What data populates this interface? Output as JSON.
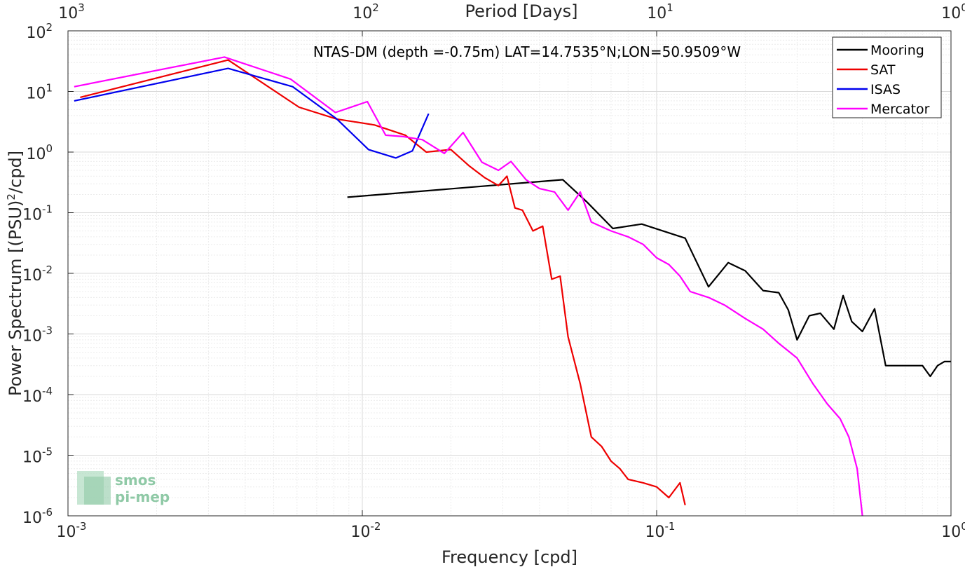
{
  "chart_data": {
    "type": "line",
    "title": "NTAS-DM (depth =-0.75m) LAT=14.7535°N;LON=50.9509°W",
    "xlabel": "Frequency [cpd]",
    "ylabel": "Power Spectrum [(PSU)",
    "ylabel_sup": "2",
    "ylabel_tail": "/cpd]",
    "x2label": "Period [Days]",
    "xscale": "log",
    "yscale": "log",
    "xlim": [
      0.001,
      1
    ],
    "ylim": [
      1e-06,
      100
    ],
    "x2lim": [
      1000,
      1
    ],
    "grid": true,
    "legend_position": "top-right",
    "x_ticks": [
      {
        "value": 0.001,
        "base": "10",
        "exp": "-3"
      },
      {
        "value": 0.01,
        "base": "10",
        "exp": "-2"
      },
      {
        "value": 0.1,
        "base": "10",
        "exp": "-1"
      },
      {
        "value": 1,
        "base": "10",
        "exp": "0"
      }
    ],
    "y_ticks": [
      {
        "value": 1e-06,
        "base": "10",
        "exp": "-6"
      },
      {
        "value": 1e-05,
        "base": "10",
        "exp": "-5"
      },
      {
        "value": 0.0001,
        "base": "10",
        "exp": "-4"
      },
      {
        "value": 0.001,
        "base": "10",
        "exp": "-3"
      },
      {
        "value": 0.01,
        "base": "10",
        "exp": "-2"
      },
      {
        "value": 0.1,
        "base": "10",
        "exp": "-1"
      },
      {
        "value": 1,
        "base": "10",
        "exp": "0"
      },
      {
        "value": 10,
        "base": "10",
        "exp": "1"
      },
      {
        "value": 100,
        "base": "10",
        "exp": "2"
      }
    ],
    "x2_ticks": [
      {
        "value": 1000,
        "base": "10",
        "exp": "3"
      },
      {
        "value": 100,
        "base": "10",
        "exp": "2"
      },
      {
        "value": 10,
        "base": "10",
        "exp": "1"
      },
      {
        "value": 1,
        "base": "10",
        "exp": "0"
      }
    ],
    "series": [
      {
        "name": "Mooring",
        "color": "#000000",
        "x": [
          0.0089,
          0.048,
          0.058,
          0.071,
          0.089,
          0.125,
          0.15,
          0.175,
          0.2,
          0.23,
          0.26,
          0.28,
          0.3,
          0.33,
          0.36,
          0.4,
          0.43,
          0.46,
          0.5,
          0.55,
          0.6,
          0.65,
          0.7,
          0.75,
          0.8,
          0.85,
          0.9,
          0.95,
          1.0
        ],
        "y": [
          0.18,
          0.35,
          0.15,
          0.055,
          0.065,
          0.038,
          0.006,
          0.015,
          0.011,
          0.0052,
          0.0048,
          0.0025,
          0.0008,
          0.002,
          0.0022,
          0.0012,
          0.0043,
          0.0016,
          0.0011,
          0.0026,
          0.0003,
          0.0003,
          0.0003,
          0.0003,
          0.0003,
          0.0002,
          0.0003,
          0.00035,
          0.00035
        ]
      },
      {
        "name": "SAT",
        "color": "#ee0000",
        "x": [
          0.0011,
          0.0035,
          0.0061,
          0.0082,
          0.011,
          0.014,
          0.0165,
          0.02,
          0.023,
          0.026,
          0.029,
          0.031,
          0.033,
          0.035,
          0.038,
          0.041,
          0.044,
          0.047,
          0.05,
          0.055,
          0.06,
          0.065,
          0.07,
          0.075,
          0.08,
          0.09,
          0.1,
          0.11,
          0.12,
          0.125
        ],
        "y": [
          8.0,
          33.0,
          5.5,
          3.5,
          2.8,
          1.9,
          1.0,
          1.1,
          0.6,
          0.38,
          0.28,
          0.4,
          0.12,
          0.11,
          0.05,
          0.06,
          0.008,
          0.009,
          0.0009,
          0.00015,
          2e-05,
          1.4e-05,
          8e-06,
          6e-06,
          4e-06,
          3.5e-06,
          3e-06,
          2e-06,
          3.5e-06,
          1.5e-06
        ]
      },
      {
        "name": "ISAS",
        "color": "#0000ee",
        "x": [
          0.00105,
          0.0035,
          0.0058,
          0.0082,
          0.0105,
          0.013,
          0.0148,
          0.0168
        ],
        "y": [
          7.0,
          24.0,
          12.0,
          3.5,
          1.1,
          0.8,
          1.05,
          4.3
        ]
      },
      {
        "name": "Mercator",
        "color": "#ff00ff",
        "x": [
          0.00105,
          0.0034,
          0.0057,
          0.0081,
          0.0104,
          0.012,
          0.0138,
          0.016,
          0.019,
          0.022,
          0.0255,
          0.029,
          0.032,
          0.036,
          0.04,
          0.045,
          0.05,
          0.055,
          0.06,
          0.07,
          0.08,
          0.09,
          0.1,
          0.11,
          0.12,
          0.13,
          0.15,
          0.17,
          0.2,
          0.23,
          0.26,
          0.3,
          0.34,
          0.38,
          0.42,
          0.45,
          0.48,
          0.5
        ],
        "y": [
          12.0,
          37.0,
          16.0,
          4.5,
          6.8,
          1.9,
          1.8,
          1.6,
          0.95,
          2.1,
          0.68,
          0.5,
          0.7,
          0.35,
          0.25,
          0.22,
          0.11,
          0.22,
          0.07,
          0.05,
          0.04,
          0.03,
          0.018,
          0.014,
          0.009,
          0.005,
          0.004,
          0.003,
          0.0018,
          0.0012,
          0.0007,
          0.0004,
          0.00015,
          7e-05,
          4e-05,
          2e-05,
          6e-06,
          1e-06
        ]
      }
    ],
    "logo": {
      "line1": "smos",
      "line2": "pi-mep"
    }
  }
}
